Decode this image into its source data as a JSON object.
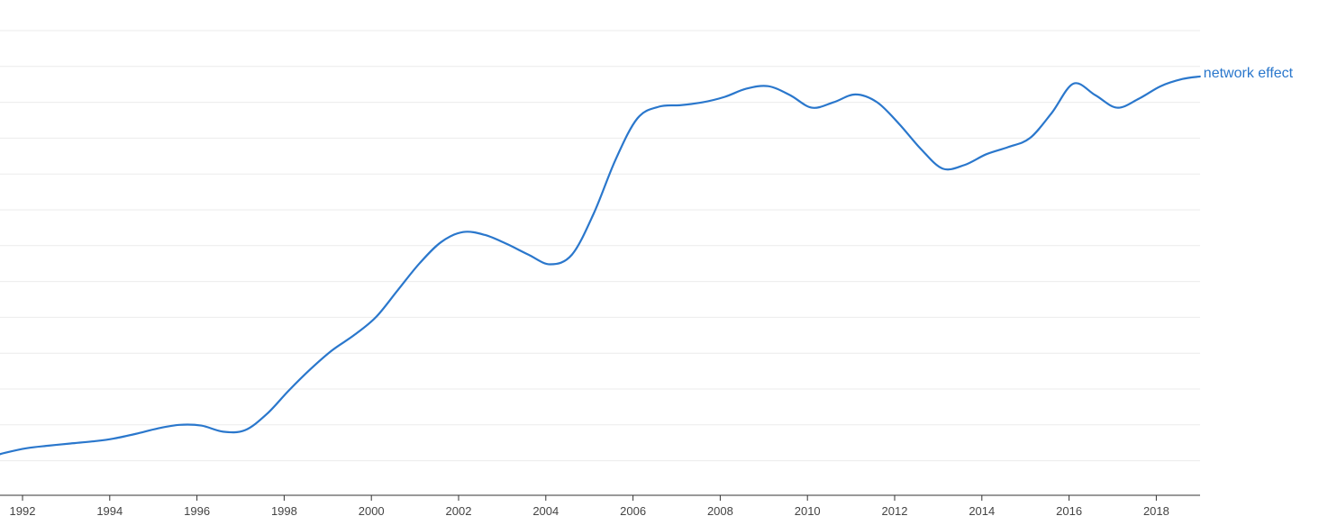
{
  "chart_data": {
    "type": "line",
    "title": "",
    "xlabel": "",
    "ylabel": "",
    "xlim": [
      1991.1,
      2019.0
    ],
    "x_ticks": [
      1992,
      1994,
      1996,
      1998,
      2000,
      2002,
      2004,
      2006,
      2008,
      2010,
      2012,
      2014,
      2016,
      2018
    ],
    "x_tick_labels": [
      "1992",
      "1994",
      "1996",
      "1998",
      "2000",
      "2002",
      "2004",
      "2006",
      "2008",
      "2010",
      "2012",
      "2014",
      "2016",
      "2018"
    ],
    "y_tick_labels_shown": false,
    "ylim": [
      0,
      13
    ],
    "y_gridlines": [
      1,
      2,
      3,
      4,
      5,
      6,
      7,
      8,
      9,
      10,
      11,
      12,
      13
    ],
    "grid": true,
    "legend": "end-of-line label",
    "series": [
      {
        "name": "network effect",
        "color": "#2a77cc",
        "x": [
          1991.1,
          1991.6,
          1992.1,
          1992.6,
          1993.1,
          1993.7,
          1994.1,
          1994.6,
          1995.1,
          1995.6,
          1996.1,
          1996.6,
          1997.1,
          1997.6,
          1998.1,
          1998.6,
          1999.1,
          1999.6,
          2000.1,
          2000.6,
          2001.1,
          2001.6,
          2002.1,
          2002.6,
          2003.1,
          2003.6,
          2004.1,
          2004.6,
          2005.1,
          2005.6,
          2006.1,
          2006.6,
          2007.1,
          2007.6,
          2008.1,
          2008.6,
          2009.1,
          2009.6,
          2010.1,
          2010.6,
          2011.1,
          2011.6,
          2012.1,
          2012.6,
          2013.1,
          2013.6,
          2014.1,
          2014.6,
          2015.1,
          2015.6,
          2016.1,
          2016.6,
          2017.1,
          2017.6,
          2018.1,
          2018.6,
          2019.0
        ],
        "values": [
          1.05,
          1.22,
          1.35,
          1.42,
          1.48,
          1.55,
          1.62,
          1.75,
          1.9,
          2.0,
          1.98,
          1.81,
          1.85,
          2.3,
          2.95,
          3.55,
          4.08,
          4.5,
          5.0,
          5.75,
          6.5,
          7.1,
          7.38,
          7.3,
          7.05,
          6.75,
          6.48,
          6.75,
          7.9,
          9.4,
          10.55,
          10.88,
          10.92,
          11.0,
          11.15,
          11.38,
          11.45,
          11.2,
          10.85,
          11.0,
          11.22,
          11.0,
          10.4,
          9.7,
          9.15,
          9.25,
          9.55,
          9.75,
          10.0,
          10.7,
          11.52,
          11.2,
          10.85,
          11.1,
          11.45,
          11.65,
          11.72
        ]
      }
    ]
  }
}
